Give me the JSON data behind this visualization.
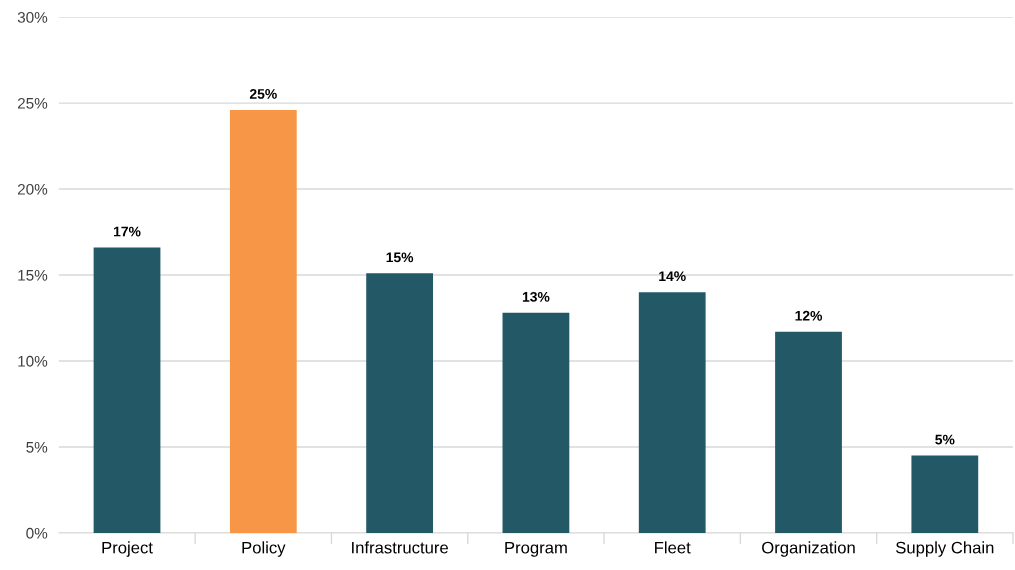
{
  "chart_data": {
    "type": "bar",
    "categories": [
      "Project",
      "Policy",
      "Infrastructure",
      "Program",
      "Fleet",
      "Organization",
      "Supply Chain"
    ],
    "values": [
      16.6,
      24.6,
      15.1,
      12.8,
      14.0,
      11.7,
      4.5
    ],
    "colors": [
      "#235867",
      "#f79646",
      "#235867",
      "#235867",
      "#235867",
      "#235867",
      "#235867"
    ],
    "value_labels": [
      "17%",
      "25%",
      "15%",
      "13%",
      "14%",
      "12%",
      "5%"
    ],
    "ylim": [
      0,
      30
    ],
    "yticks": [
      {
        "value": 0,
        "label": "0%"
      },
      {
        "value": 5,
        "label": "5%"
      },
      {
        "value": 10,
        "label": "10%"
      },
      {
        "value": 15,
        "label": "15%"
      },
      {
        "value": 20,
        "label": "20%"
      },
      {
        "value": 25,
        "label": "25%"
      },
      {
        "value": 30,
        "label": "30%"
      }
    ],
    "grid": "y",
    "legend": false
  }
}
